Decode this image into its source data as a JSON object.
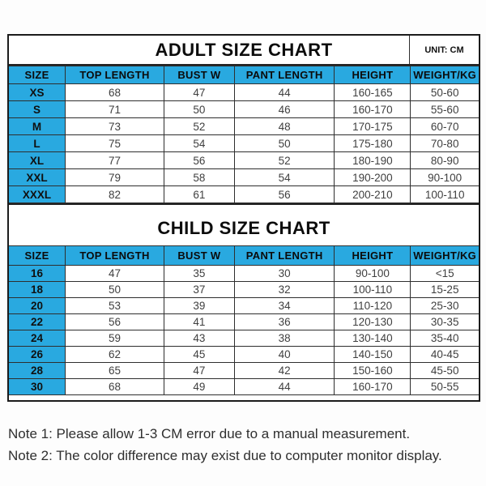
{
  "colors": {
    "header_blue": "#29a9e0",
    "border_dark": "#1b1b1b",
    "grid_line": "#2e2e2e",
    "data_text": "#3f3f3f",
    "title_text": "#0c0c0c",
    "background": "#fdfdfd"
  },
  "adult_chart": {
    "title": "ADULT SIZE CHART",
    "unit_label": "UNIT: CM",
    "columns": [
      "SIZE",
      "TOP LENGTH",
      "BUST W",
      "PANT LENGTH",
      "HEIGHT",
      "WEIGHT/KG"
    ],
    "rows": [
      [
        "XS",
        "68",
        "47",
        "44",
        "160-165",
        "50-60"
      ],
      [
        "S",
        "71",
        "50",
        "46",
        "160-170",
        "55-60"
      ],
      [
        "M",
        "73",
        "52",
        "48",
        "170-175",
        "60-70"
      ],
      [
        "L",
        "75",
        "54",
        "50",
        "175-180",
        "70-80"
      ],
      [
        "XL",
        "77",
        "56",
        "52",
        "180-190",
        "80-90"
      ],
      [
        "XXL",
        "79",
        "58",
        "54",
        "190-200",
        "90-100"
      ],
      [
        "XXXL",
        "82",
        "61",
        "56",
        "200-210",
        "100-110"
      ]
    ]
  },
  "child_chart": {
    "title": "CHILD SIZE CHART",
    "columns": [
      "SIZE",
      "TOP LENGTH",
      "BUST W",
      "PANT LENGTH",
      "HEIGHT",
      "WEIGHT/KG"
    ],
    "rows": [
      [
        "16",
        "47",
        "35",
        "30",
        "90-100",
        "<15"
      ],
      [
        "18",
        "50",
        "37",
        "32",
        "100-110",
        "15-25"
      ],
      [
        "20",
        "53",
        "39",
        "34",
        "110-120",
        "25-30"
      ],
      [
        "22",
        "56",
        "41",
        "36",
        "120-130",
        "30-35"
      ],
      [
        "24",
        "59",
        "43",
        "38",
        "130-140",
        "35-40"
      ],
      [
        "26",
        "62",
        "45",
        "40",
        "140-150",
        "40-45"
      ],
      [
        "28",
        "65",
        "47",
        "42",
        "150-160",
        "45-50"
      ],
      [
        "30",
        "68",
        "49",
        "44",
        "160-170",
        "50-55"
      ]
    ]
  },
  "notes": [
    "Note 1: Please allow 1-3 CM error due to a manual measurement.",
    "Note 2: The color difference may exist due to computer monitor display."
  ]
}
